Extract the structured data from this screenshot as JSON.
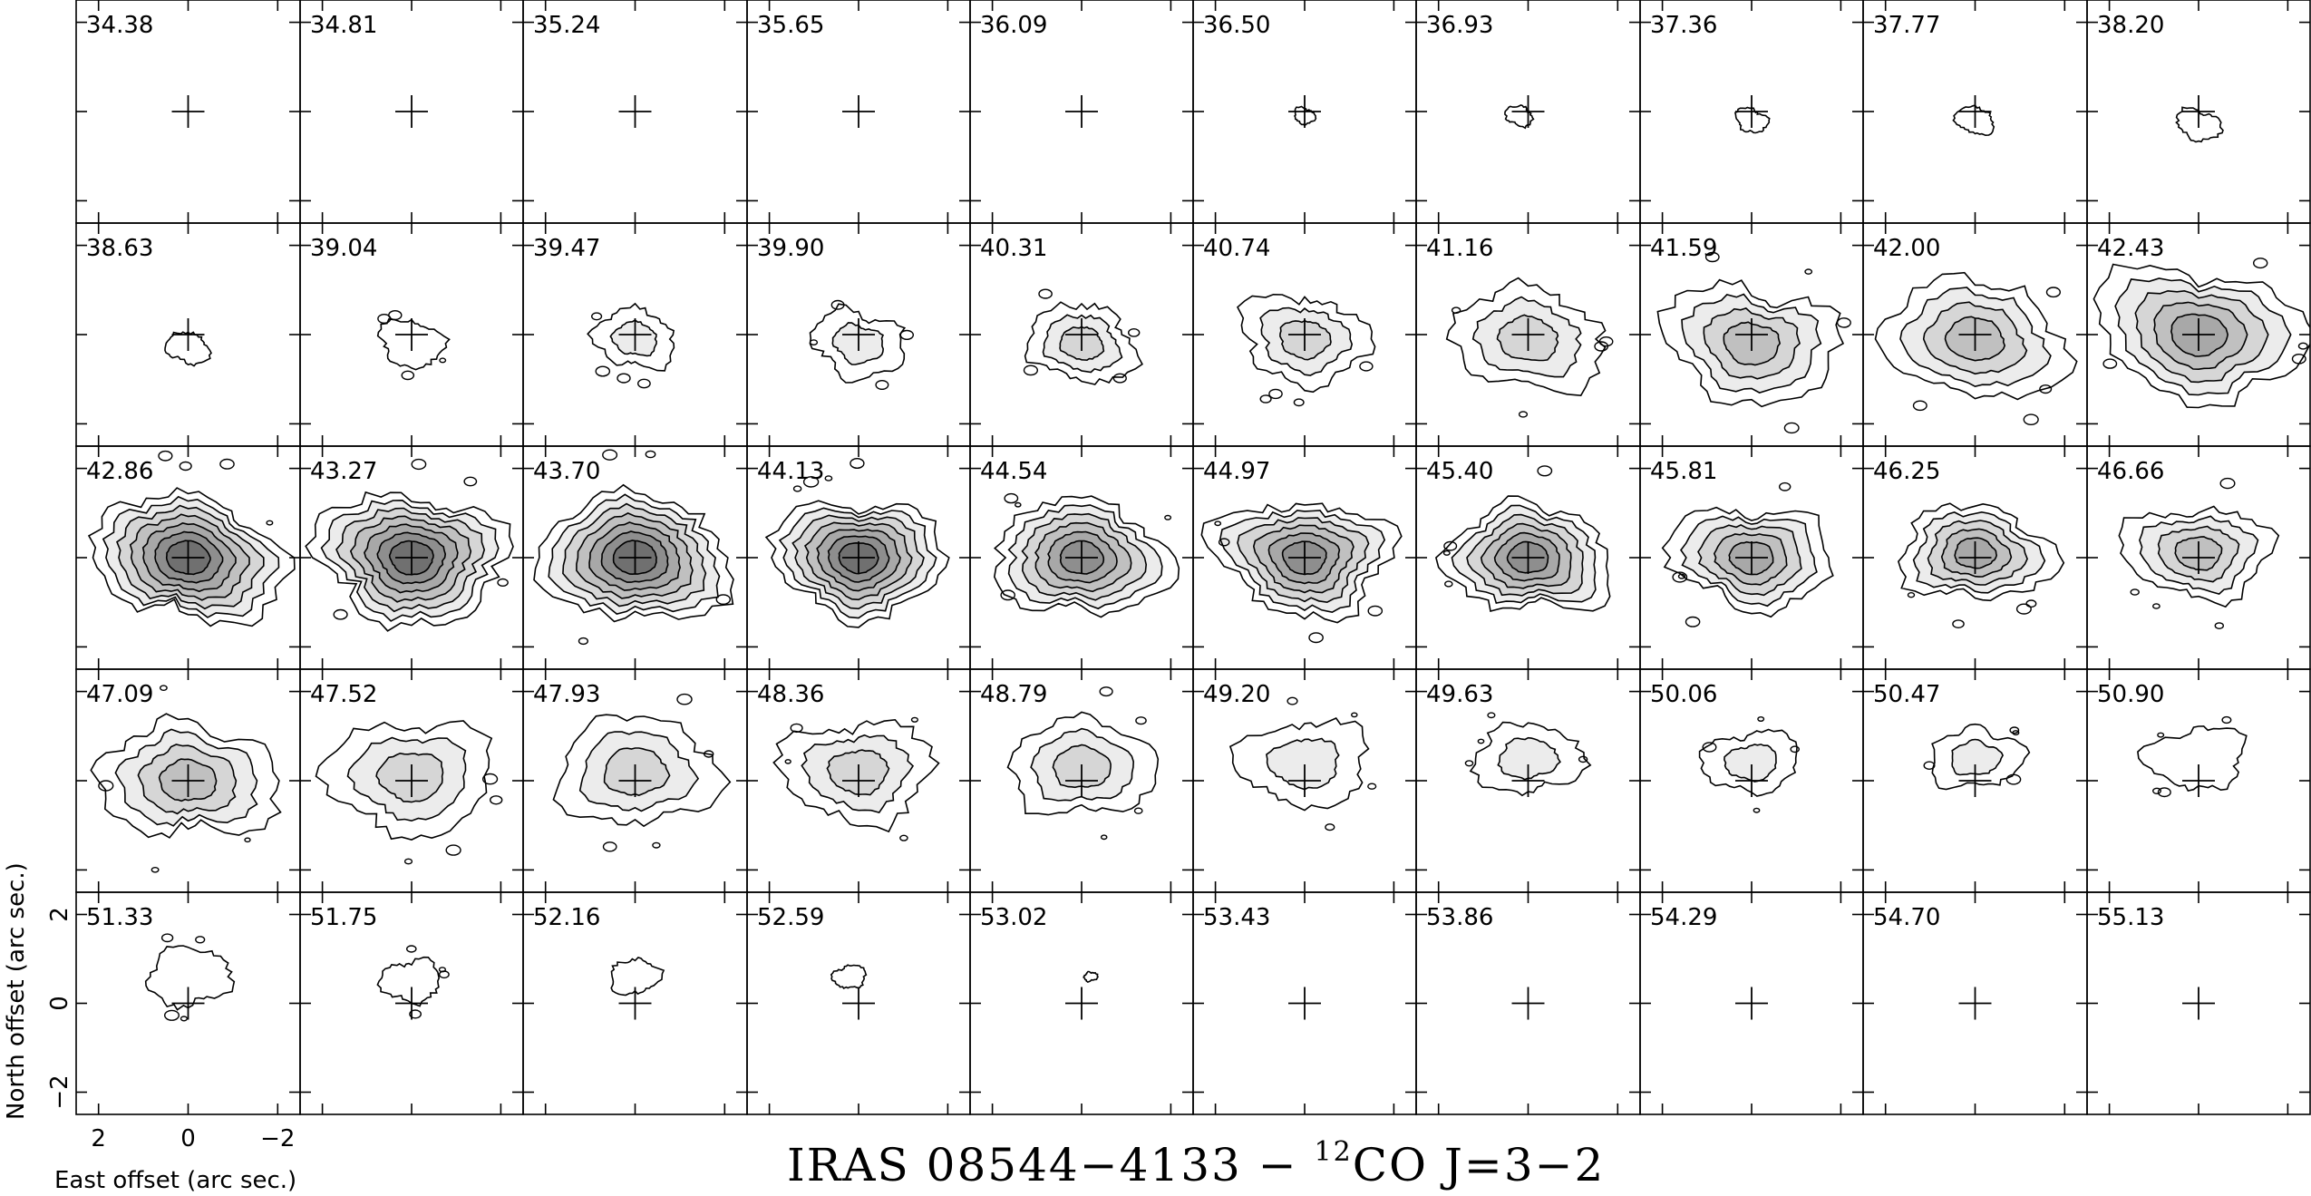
{
  "chart_data": {
    "type": "contour",
    "title": {
      "prefix": "IRAS 08544−4133  −  ",
      "isotope": "12",
      "molecule": "CO J=3−2"
    },
    "layout": {
      "columns": 10,
      "rows": 5
    },
    "panel_x_range": [
      2.5,
      -2.5
    ],
    "panel_y_range": [
      -2.5,
      2.5
    ],
    "xlabel": "East offset (arc sec.)",
    "ylabel": "North offset (arc sec.)",
    "x_ticks": [
      2,
      0,
      -2
    ],
    "x_tick_labels": [
      "2",
      "0",
      "−2"
    ],
    "y_ticks": [
      2,
      0,
      -2
    ],
    "y_tick_labels": [
      "2",
      "0",
      "−2"
    ],
    "channel_velocities": [
      "34.38",
      "34.81",
      "35.24",
      "35.65",
      "36.09",
      "36.50",
      "36.93",
      "37.36",
      "37.77",
      "38.20",
      "38.63",
      "39.04",
      "39.47",
      "39.90",
      "40.31",
      "40.74",
      "41.16",
      "41.59",
      "42.00",
      "42.43",
      "42.86",
      "43.27",
      "43.70",
      "44.13",
      "44.54",
      "44.97",
      "45.40",
      "45.81",
      "46.25",
      "46.66",
      "47.09",
      "47.52",
      "47.93",
      "48.36",
      "48.79",
      "49.20",
      "49.63",
      "50.06",
      "50.47",
      "50.90",
      "51.33",
      "51.75",
      "52.16",
      "52.59",
      "53.02",
      "53.43",
      "53.86",
      "54.29",
      "54.70",
      "55.13"
    ],
    "emission": [
      {
        "v": "36.50",
        "size": 0.2,
        "levels": 1,
        "dx": 0.0,
        "dy": -0.1
      },
      {
        "v": "36.93",
        "size": 0.25,
        "levels": 1,
        "dx": 0.2,
        "dy": -0.1
      },
      {
        "v": "37.36",
        "size": 0.3,
        "levels": 1,
        "dx": 0.0,
        "dy": -0.2
      },
      {
        "v": "37.77",
        "size": 0.35,
        "levels": 1,
        "dx": 0.0,
        "dy": -0.2
      },
      {
        "v": "38.20",
        "size": 0.4,
        "levels": 1,
        "dx": 0.0,
        "dy": -0.3
      },
      {
        "v": "38.63",
        "size": 0.4,
        "levels": 1,
        "dx": 0.0,
        "dy": -0.3
      },
      {
        "v": "39.04",
        "size": 0.6,
        "levels": 1,
        "dx": 0.0,
        "dy": -0.2
      },
      {
        "v": "39.47",
        "size": 0.75,
        "levels": 2,
        "dx": 0.0,
        "dy": -0.1
      },
      {
        "v": "39.90",
        "size": 0.85,
        "levels": 2,
        "dx": 0.0,
        "dy": -0.2
      },
      {
        "v": "40.31",
        "size": 1.0,
        "levels": 3,
        "dx": 0.0,
        "dy": -0.2
      },
      {
        "v": "40.74",
        "size": 1.15,
        "levels": 3,
        "dx": 0.0,
        "dy": -0.1
      },
      {
        "v": "41.16",
        "size": 1.35,
        "levels": 3,
        "dx": 0.0,
        "dy": -0.1
      },
      {
        "v": "41.59",
        "size": 1.55,
        "levels": 4,
        "dx": 0.0,
        "dy": -0.2
      },
      {
        "v": "42.00",
        "size": 1.6,
        "levels": 4,
        "dx": 0.0,
        "dy": -0.1
      },
      {
        "v": "42.43",
        "size": 1.8,
        "levels": 5,
        "dx": 0.0,
        "dy": 0.0
      },
      {
        "v": "42.86",
        "size": 1.7,
        "levels": 7,
        "dx": 0.0,
        "dy": 0.0
      },
      {
        "v": "43.27",
        "size": 1.7,
        "levels": 7,
        "dx": 0.0,
        "dy": 0.0
      },
      {
        "v": "43.70",
        "size": 1.7,
        "levels": 7,
        "dx": 0.0,
        "dy": 0.0
      },
      {
        "v": "44.13",
        "size": 1.55,
        "levels": 7,
        "dx": 0.0,
        "dy": 0.0
      },
      {
        "v": "44.54",
        "size": 1.55,
        "levels": 6,
        "dx": 0.0,
        "dy": 0.0
      },
      {
        "v": "44.97",
        "size": 1.55,
        "levels": 6,
        "dx": 0.0,
        "dy": 0.0
      },
      {
        "v": "45.40",
        "size": 1.45,
        "levels": 6,
        "dx": 0.0,
        "dy": 0.0
      },
      {
        "v": "45.81",
        "size": 1.4,
        "levels": 5,
        "dx": 0.0,
        "dy": 0.0
      },
      {
        "v": "46.25",
        "size": 1.3,
        "levels": 5,
        "dx": 0.0,
        "dy": 0.1
      },
      {
        "v": "46.66",
        "size": 1.25,
        "levels": 4,
        "dx": 0.0,
        "dy": 0.1
      },
      {
        "v": "47.09",
        "size": 1.55,
        "levels": 4,
        "dx": 0.0,
        "dy": 0.0
      },
      {
        "v": "47.52",
        "size": 1.5,
        "levels": 3,
        "dx": 0.0,
        "dy": 0.1
      },
      {
        "v": "47.93",
        "size": 1.45,
        "levels": 3,
        "dx": 0.0,
        "dy": 0.2
      },
      {
        "v": "48.36",
        "size": 1.35,
        "levels": 3,
        "dx": 0.0,
        "dy": 0.2
      },
      {
        "v": "48.79",
        "size": 1.3,
        "levels": 3,
        "dx": 0.0,
        "dy": 0.3
      },
      {
        "v": "49.20",
        "size": 1.15,
        "levels": 2,
        "dx": 0.0,
        "dy": 0.4
      },
      {
        "v": "49.63",
        "size": 0.95,
        "levels": 2,
        "dx": 0.0,
        "dy": 0.5
      },
      {
        "v": "50.06",
        "size": 0.85,
        "levels": 2,
        "dx": 0.0,
        "dy": 0.4
      },
      {
        "v": "50.47",
        "size": 0.8,
        "levels": 2,
        "dx": 0.0,
        "dy": 0.5
      },
      {
        "v": "50.90",
        "size": 0.85,
        "levels": 1,
        "dx": 0.0,
        "dy": 0.5
      },
      {
        "v": "51.33",
        "size": 0.75,
        "levels": 1,
        "dx": 0.0,
        "dy": 0.6
      },
      {
        "v": "51.75",
        "size": 0.55,
        "levels": 1,
        "dx": 0.0,
        "dy": 0.5
      },
      {
        "v": "52.16",
        "size": 0.45,
        "levels": 1,
        "dx": 0.0,
        "dy": 0.6
      },
      {
        "v": "52.59",
        "size": 0.3,
        "levels": 1,
        "dx": 0.2,
        "dy": 0.6
      },
      {
        "v": "53.02",
        "size": 0.12,
        "levels": 1,
        "dx": -0.2,
        "dy": 0.6
      }
    ],
    "contour_fill_colors": [
      "#ffffff",
      "#ececec",
      "#d6d6d6",
      "#c0c0c0",
      "#a8a8a8",
      "#8e8e8e",
      "#707070",
      "#4a4a4a"
    ],
    "line_color": "#000000"
  }
}
